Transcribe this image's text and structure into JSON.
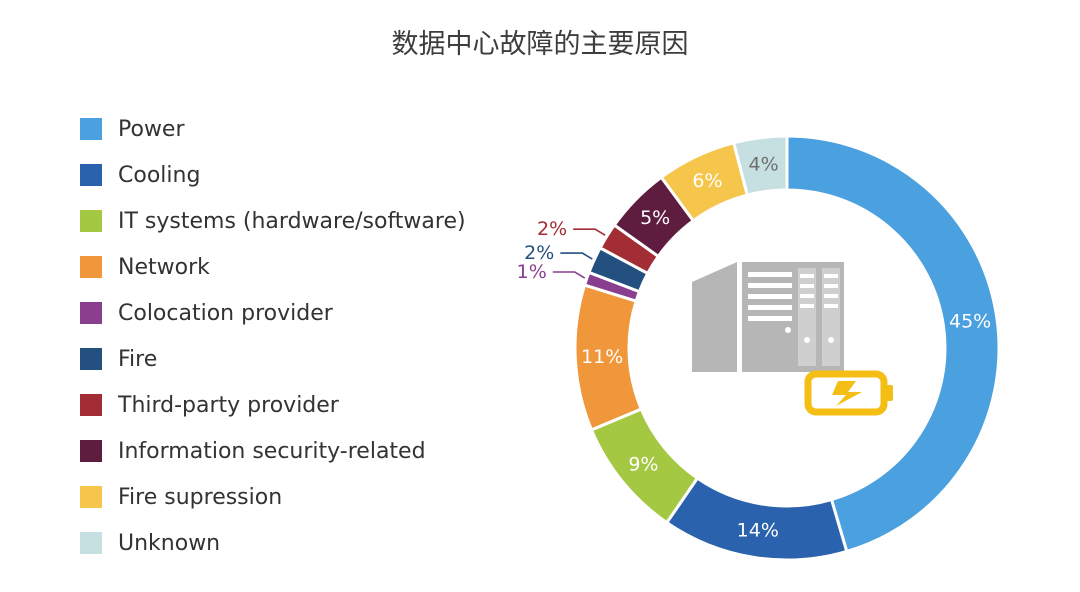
{
  "title": "数据中心故障的主要原因",
  "chart_data": {
    "type": "pie",
    "variant": "donut",
    "title": "数据中心故障的主要原因",
    "legend_position": "left",
    "slices": [
      {
        "label": "Power",
        "value": 45,
        "value_label": "45%",
        "color": "#4ba0e0",
        "label_color": "#ffffff"
      },
      {
        "label": "Cooling",
        "value": 14,
        "value_label": "14%",
        "color": "#2a62ad",
        "label_color": "#ffffff"
      },
      {
        "label": "IT systems (hardware/software)",
        "value": 9,
        "value_label": "9%",
        "color": "#a5c842",
        "label_color": "#ffffff"
      },
      {
        "label": "Network",
        "value": 11,
        "value_label": "11%",
        "color": "#f0973c",
        "label_color": "#ffffff"
      },
      {
        "label": "Colocation provider",
        "value": 1,
        "value_label": "1%",
        "color": "#8a3f8e",
        "label_color": "#8a3f8e"
      },
      {
        "label": "Fire",
        "value": 2,
        "value_label": "2%",
        "color": "#23507f",
        "label_color": "#23507f"
      },
      {
        "label": "Third-party provider",
        "value": 2,
        "value_label": "2%",
        "color": "#a22d34",
        "label_color": "#a22d34"
      },
      {
        "label": "Information security-related",
        "value": 5,
        "value_label": "5%",
        "color": "#5e1c3f",
        "label_color": "#ffffff"
      },
      {
        "label": "Fire supression",
        "value": 6,
        "value_label": "6%",
        "color": "#f6c54b",
        "label_color": "#ffffff"
      },
      {
        "label": "Unknown",
        "value": 4,
        "value_label": "4%",
        "color": "#c6dfe1",
        "label_color": "#6f6f6f"
      }
    ]
  },
  "center_icon": {
    "name": "server-battery-icon",
    "server_color": "#b6b6b6",
    "battery_color": "#f5be15"
  }
}
